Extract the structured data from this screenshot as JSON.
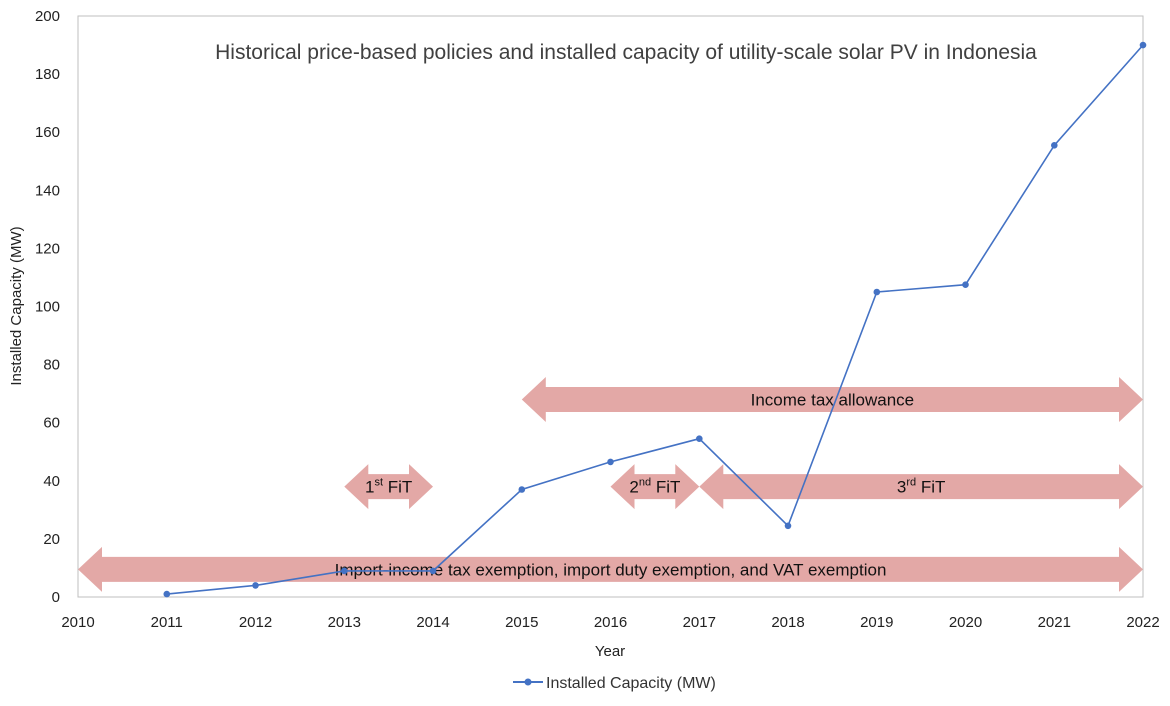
{
  "chart_data": {
    "type": "line",
    "title": "Historical price-based policies and installed capacity of utility-scale solar PV in Indonesia",
    "xlabel": "Year",
    "ylabel": "Installed Capacity (MW)",
    "xlim": [
      2010,
      2022
    ],
    "ylim": [
      0,
      200
    ],
    "x_ticks": [
      2010,
      2011,
      2012,
      2013,
      2014,
      2015,
      2016,
      2017,
      2018,
      2019,
      2020,
      2021,
      2022
    ],
    "y_ticks": [
      0,
      20,
      40,
      60,
      80,
      100,
      120,
      140,
      160,
      180,
      200
    ],
    "grid": false,
    "legend_position": "bottom-center",
    "series": [
      {
        "name": "Installed Capacity (MW)",
        "color": "#4472C4",
        "x": [
          2011,
          2012,
          2013,
          2014,
          2015,
          2016,
          2017,
          2018,
          2019,
          2020,
          2021,
          2022
        ],
        "values": [
          1,
          4,
          9,
          9,
          37,
          46.5,
          54.5,
          24.5,
          105,
          107.5,
          155.5,
          190
        ]
      }
    ],
    "policy_arrows": [
      {
        "label": "Income tax allowance",
        "sup": "",
        "x_start": 2015,
        "x_end": 2022,
        "y": 68
      },
      {
        "label": "FiT",
        "prefix": "1",
        "sup": "st",
        "x_start": 2013,
        "x_end": 2014,
        "y": 38
      },
      {
        "label": "FiT",
        "prefix": "2",
        "sup": "nd",
        "x_start": 2016,
        "x_end": 2017,
        "y": 38
      },
      {
        "label": "FiT",
        "prefix": "3",
        "sup": "rd",
        "x_start": 2017,
        "x_end": 2022,
        "y": 38
      },
      {
        "label": "Import-income tax exemption, import duty exemption, and VAT  exemption",
        "sup": "",
        "x_start": 2010,
        "x_end": 2022,
        "y": 9.5
      }
    ],
    "arrow_color": "#E3A8A6"
  }
}
